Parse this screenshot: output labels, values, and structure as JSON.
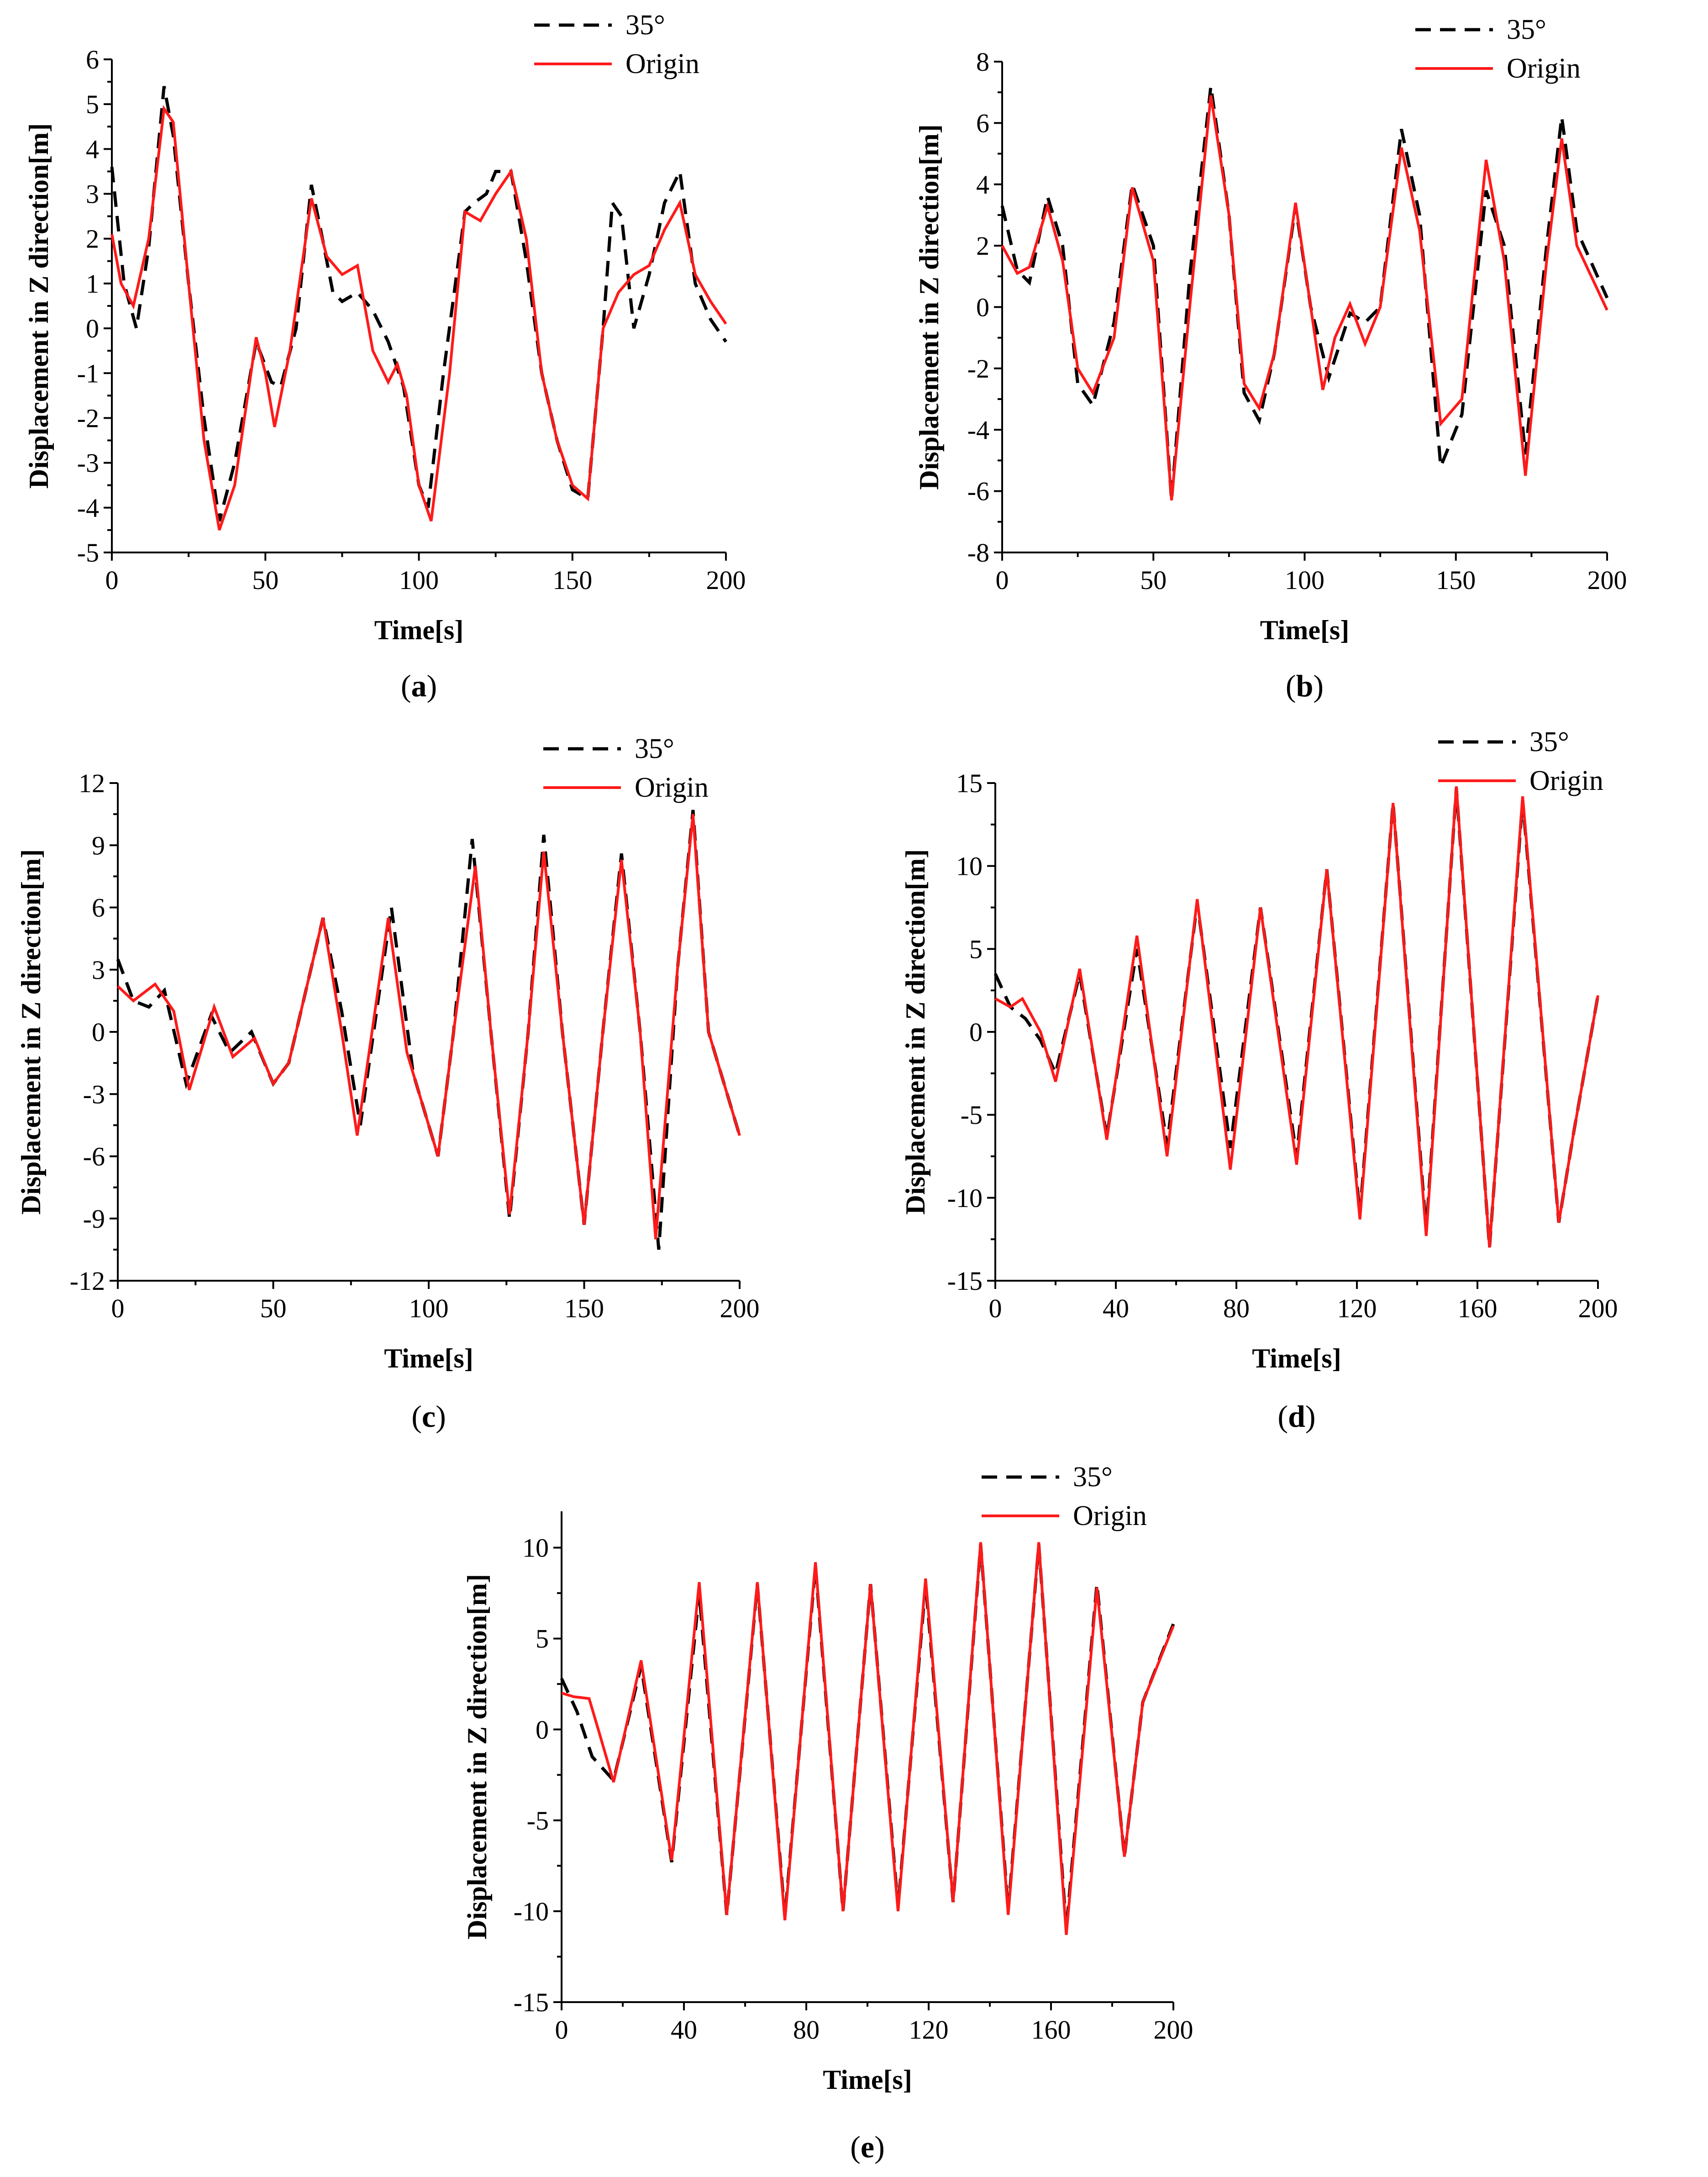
{
  "legend": {
    "dashed": "35°",
    "solid": "Origin"
  },
  "colors": {
    "dashed": "#000000",
    "solid": "#ff1a1a"
  },
  "chart_data": [
    {
      "type": "line",
      "panel_label": "a",
      "xlabel": "Time[s]",
      "ylabel": "Displacement in Z direction[m]",
      "xlim": [
        0,
        200
      ],
      "ylim": [
        -5,
        6
      ],
      "xticks": [
        0,
        50,
        100,
        150,
        200
      ],
      "yticks": [
        -5,
        -4,
        -3,
        -2,
        -1,
        0,
        1,
        2,
        3,
        4,
        5,
        6
      ],
      "series": [
        {
          "name": "35°",
          "style": "dashed",
          "x": [
            0,
            4,
            8,
            12,
            17,
            20,
            25,
            30,
            35,
            40,
            47,
            52,
            55,
            60,
            65,
            68,
            72,
            75,
            80,
            85,
            90,
            95,
            100,
            103,
            108,
            115,
            118,
            122,
            125,
            130,
            135,
            140,
            145,
            150,
            155,
            160,
            163,
            166,
            170,
            175,
            180,
            185,
            190,
            195,
            200
          ],
          "y": [
            3.6,
            1,
            0,
            1.8,
            5.4,
            4.3,
            1,
            -2,
            -4.3,
            -3,
            -0.3,
            -1.2,
            -1.3,
            0,
            3.2,
            2.2,
            0.8,
            0.6,
            0.8,
            0.4,
            -0.3,
            -1.3,
            -3.5,
            -4,
            -1,
            2.6,
            2.8,
            3,
            3.5,
            3.5,
            1.5,
            -1,
            -2.5,
            -3.6,
            -3.8,
            0,
            2.8,
            2.5,
            0,
            1.2,
            2.8,
            3.5,
            1,
            0.2,
            -0.3
          ]
        },
        {
          "name": "Origin",
          "style": "solid",
          "x": [
            0,
            3,
            7,
            12,
            17,
            20,
            25,
            30,
            35,
            40,
            47,
            50,
            53,
            58,
            65,
            70,
            75,
            80,
            85,
            90,
            93,
            96,
            100,
            104,
            110,
            115,
            120,
            125,
            130,
            135,
            140,
            145,
            150,
            155,
            160,
            165,
            170,
            175,
            180,
            185,
            190,
            195,
            200
          ],
          "y": [
            2.1,
            1,
            0.5,
            2,
            4.9,
            4.6,
            1,
            -2.5,
            -4.5,
            -3.5,
            -0.2,
            -1,
            -2.2,
            -0.5,
            2.9,
            1.6,
            1.2,
            1.4,
            -0.5,
            -1.2,
            -0.8,
            -1.5,
            -3.5,
            -4.3,
            -1,
            2.6,
            2.4,
            3,
            3.5,
            2,
            -1,
            -2.5,
            -3.5,
            -3.8,
            0,
            0.8,
            1.2,
            1.4,
            2.2,
            2.8,
            1.2,
            0.6,
            0.1
          ]
        }
      ]
    },
    {
      "type": "line",
      "panel_label": "b",
      "xlabel": "Time[s]",
      "ylabel": "Displacement in Z direction[m]",
      "xlim": [
        0,
        200
      ],
      "ylim": [
        -8,
        8
      ],
      "xticks": [
        0,
        50,
        100,
        150,
        200
      ],
      "yticks": [
        -8,
        -6,
        -4,
        -2,
        0,
        2,
        4,
        6,
        8
      ],
      "series": [
        {
          "name": "35°",
          "style": "dashed",
          "x": [
            0,
            5,
            9,
            15,
            20,
            25,
            30,
            37,
            43,
            50,
            56,
            62,
            69,
            75,
            80,
            85,
            90,
            97,
            102,
            108,
            115,
            120,
            125,
            132,
            138,
            145,
            152,
            160,
            166,
            173,
            180,
            185,
            190,
            200
          ],
          "y": [
            3.3,
            1.2,
            0.8,
            3.6,
            2,
            -2.5,
            -3.2,
            -0.5,
            4,
            2,
            -6.3,
            1,
            7.2,
            3,
            -2.8,
            -3.7,
            -1.5,
            3.3,
            0,
            -2.3,
            -0.2,
            -0.5,
            0,
            5.8,
            3,
            -5.2,
            -3.5,
            3.8,
            2,
            -4.8,
            2,
            6.2,
            2.5,
            0.3
          ]
        },
        {
          "name": "Origin",
          "style": "solid",
          "x": [
            0,
            5,
            9,
            15,
            20,
            25,
            30,
            37,
            43,
            50,
            56,
            62,
            69,
            75,
            80,
            85,
            90,
            97,
            102,
            106,
            110,
            115,
            120,
            125,
            132,
            138,
            145,
            152,
            160,
            166,
            173,
            180,
            185,
            190,
            200
          ],
          "y": [
            2,
            1.1,
            1.3,
            3.3,
            1.5,
            -2,
            -2.8,
            -1,
            3.9,
            1.5,
            -6.3,
            0,
            6.9,
            3,
            -2.5,
            -3.3,
            -1.5,
            3.4,
            0,
            -2.7,
            -1,
            0.1,
            -1.2,
            0,
            5.2,
            2.5,
            -3.8,
            -3,
            4.8,
            1.5,
            -5.5,
            1.5,
            5.5,
            2,
            -0.1
          ]
        }
      ]
    },
    {
      "type": "line",
      "panel_label": "c",
      "xlabel": "Time[s]",
      "ylabel": "Displacement in Z direction[m]",
      "xlim": [
        0,
        200
      ],
      "ylim": [
        -12,
        12
      ],
      "xticks": [
        0,
        50,
        100,
        150,
        200
      ],
      "yticks": [
        -12,
        -9,
        -6,
        -3,
        0,
        3,
        6,
        9,
        12
      ],
      "series": [
        {
          "name": "35°",
          "style": "dashed",
          "x": [
            0,
            5,
            10,
            15,
            22,
            30,
            36,
            43,
            50,
            55,
            66,
            72,
            78,
            88,
            95,
            103,
            108,
            114,
            120,
            126,
            132,
            137,
            143,
            150,
            156,
            162,
            168,
            174,
            180,
            185,
            190,
            200
          ],
          "y": [
            3.5,
            1.5,
            1.2,
            2,
            -2.5,
            0.8,
            -1,
            0,
            -2.5,
            -1.5,
            5.5,
            1,
            -4.5,
            6,
            -2,
            -6,
            0,
            9.3,
            0,
            -9,
            0,
            9.5,
            0,
            -9.3,
            0,
            8.6,
            0,
            -10.5,
            3,
            10.7,
            0,
            -5
          ]
        },
        {
          "name": "Origin",
          "style": "solid",
          "x": [
            0,
            5,
            12,
            18,
            23,
            31,
            37,
            44,
            50,
            55,
            66,
            72,
            77,
            87,
            93,
            103,
            108,
            115,
            120,
            126,
            132,
            137,
            143,
            150,
            156,
            162,
            168,
            173,
            180,
            185,
            190,
            200
          ],
          "y": [
            2.2,
            1.5,
            2.3,
            1,
            -2.8,
            1.2,
            -1.2,
            -0.3,
            -2.5,
            -1.5,
            5.5,
            0,
            -5,
            5.5,
            -1,
            -6,
            0,
            8,
            0,
            -8.8,
            0,
            8.7,
            0,
            -9.3,
            0,
            8.3,
            0,
            -10,
            3,
            10.5,
            0,
            -5
          ]
        }
      ]
    },
    {
      "type": "line",
      "panel_label": "d",
      "xlabel": "Time[s]",
      "ylabel": "Displacement in Z direction[m]",
      "xlim": [
        0,
        200
      ],
      "ylim": [
        -15,
        15
      ],
      "xticks": [
        0,
        40,
        80,
        120,
        160,
        200
      ],
      "yticks": [
        -15,
        -10,
        -5,
        0,
        5,
        10,
        15
      ],
      "series": [
        {
          "name": "35°",
          "style": "dashed",
          "x": [
            0,
            5,
            10,
            15,
            20,
            28,
            37,
            47,
            57,
            67,
            78,
            88,
            100,
            110,
            121,
            132,
            143,
            153,
            164,
            175,
            187,
            192,
            200
          ],
          "y": [
            3.5,
            1.5,
            0.8,
            -0.5,
            -2.5,
            3.5,
            -6.3,
            5,
            -6.8,
            7.8,
            -7,
            7.5,
            -7.5,
            9.8,
            -11,
            13.8,
            -12,
            14.7,
            -13,
            14,
            -11.5,
            -6,
            2.2
          ]
        },
        {
          "name": "Origin",
          "style": "solid",
          "x": [
            0,
            5,
            9,
            15,
            20,
            28,
            37,
            47,
            57,
            67,
            78,
            88,
            100,
            110,
            121,
            132,
            143,
            153,
            164,
            175,
            187,
            192,
            200
          ],
          "y": [
            2,
            1.5,
            2,
            0,
            -3,
            3.8,
            -6.5,
            5.8,
            -7.5,
            8,
            -8.3,
            7.5,
            -8,
            9.8,
            -11.3,
            13.8,
            -12.3,
            14.8,
            -13,
            14.2,
            -11.5,
            -6,
            2.2
          ]
        }
      ]
    },
    {
      "type": "line",
      "panel_label": "e",
      "xlabel": "Time[s]",
      "ylabel": "Displacement in Z direction[m]",
      "xlim": [
        0,
        200
      ],
      "ylim": [
        -15,
        12
      ],
      "xticks": [
        0,
        40,
        80,
        120,
        160,
        200
      ],
      "yticks": [
        -15,
        -10,
        -5,
        0,
        5,
        10
      ],
      "series": [
        {
          "name": "35°",
          "style": "dashed",
          "x": [
            0,
            5,
            10,
            17,
            26,
            36,
            45,
            54,
            64,
            73,
            83,
            92,
            101,
            110,
            119,
            128,
            137,
            146,
            156,
            165,
            175,
            184,
            190,
            200
          ],
          "y": [
            2.8,
            1,
            -1.5,
            -2.8,
            3.5,
            -7.3,
            7.5,
            -10.2,
            8,
            -10.3,
            9,
            -10,
            8,
            -9.8,
            8,
            -9.5,
            10.2,
            -10,
            10.2,
            -11,
            8,
            -7,
            1.5,
            5.8
          ]
        },
        {
          "name": "Origin",
          "style": "solid",
          "x": [
            0,
            4,
            9,
            12,
            17,
            26,
            36,
            45,
            54,
            64,
            73,
            83,
            92,
            101,
            110,
            119,
            128,
            137,
            146,
            156,
            165,
            175,
            184,
            190,
            200
          ],
          "y": [
            2,
            1.8,
            1.7,
            0,
            -2.9,
            3.8,
            -7.2,
            8.1,
            -10.2,
            8.1,
            -10.5,
            9.2,
            -10,
            8,
            -10,
            8.3,
            -9.5,
            10.3,
            -10.2,
            10.3,
            -11.3,
            7.8,
            -7,
            1.5,
            5.7
          ]
        }
      ]
    }
  ]
}
